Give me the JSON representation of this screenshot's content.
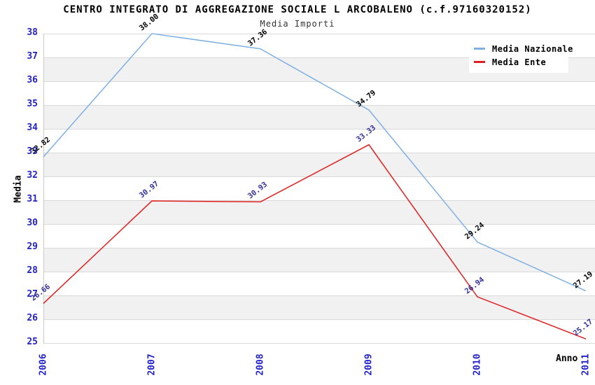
{
  "chart_data": {
    "type": "line",
    "title": "CENTRO INTEGRATO DI AGGREGAZIONE SOCIALE L ARCOBALENO (c.f.97160320152)",
    "subtitle": "Media Importi",
    "xlabel": "Anno",
    "ylabel": "Media",
    "categories": [
      "2006",
      "2007",
      "2008",
      "2009",
      "2010",
      "2011"
    ],
    "series": [
      {
        "name": "Media Nazionale",
        "color": "#7fb0e2",
        "label_color": "#000000",
        "values": [
          32.82,
          38.0,
          37.36,
          34.79,
          29.24,
          27.19
        ]
      },
      {
        "name": "Media Ente",
        "color": "#e02020",
        "label_color": "#333399",
        "values": [
          26.66,
          30.97,
          30.93,
          33.33,
          26.94,
          25.17
        ]
      }
    ],
    "ylim": [
      25,
      38
    ],
    "yticks": [
      38,
      37,
      36,
      35,
      34,
      33,
      32,
      31,
      30,
      29,
      28,
      27,
      26,
      25
    ],
    "grid": true,
    "legend_position": "top-right",
    "styles": {
      "tick_label_color": "#2222cc",
      "band_color": "#f1f1f1",
      "gridline_color": "#d9d9d9",
      "axis_line_color": "#c9c9c9"
    }
  }
}
